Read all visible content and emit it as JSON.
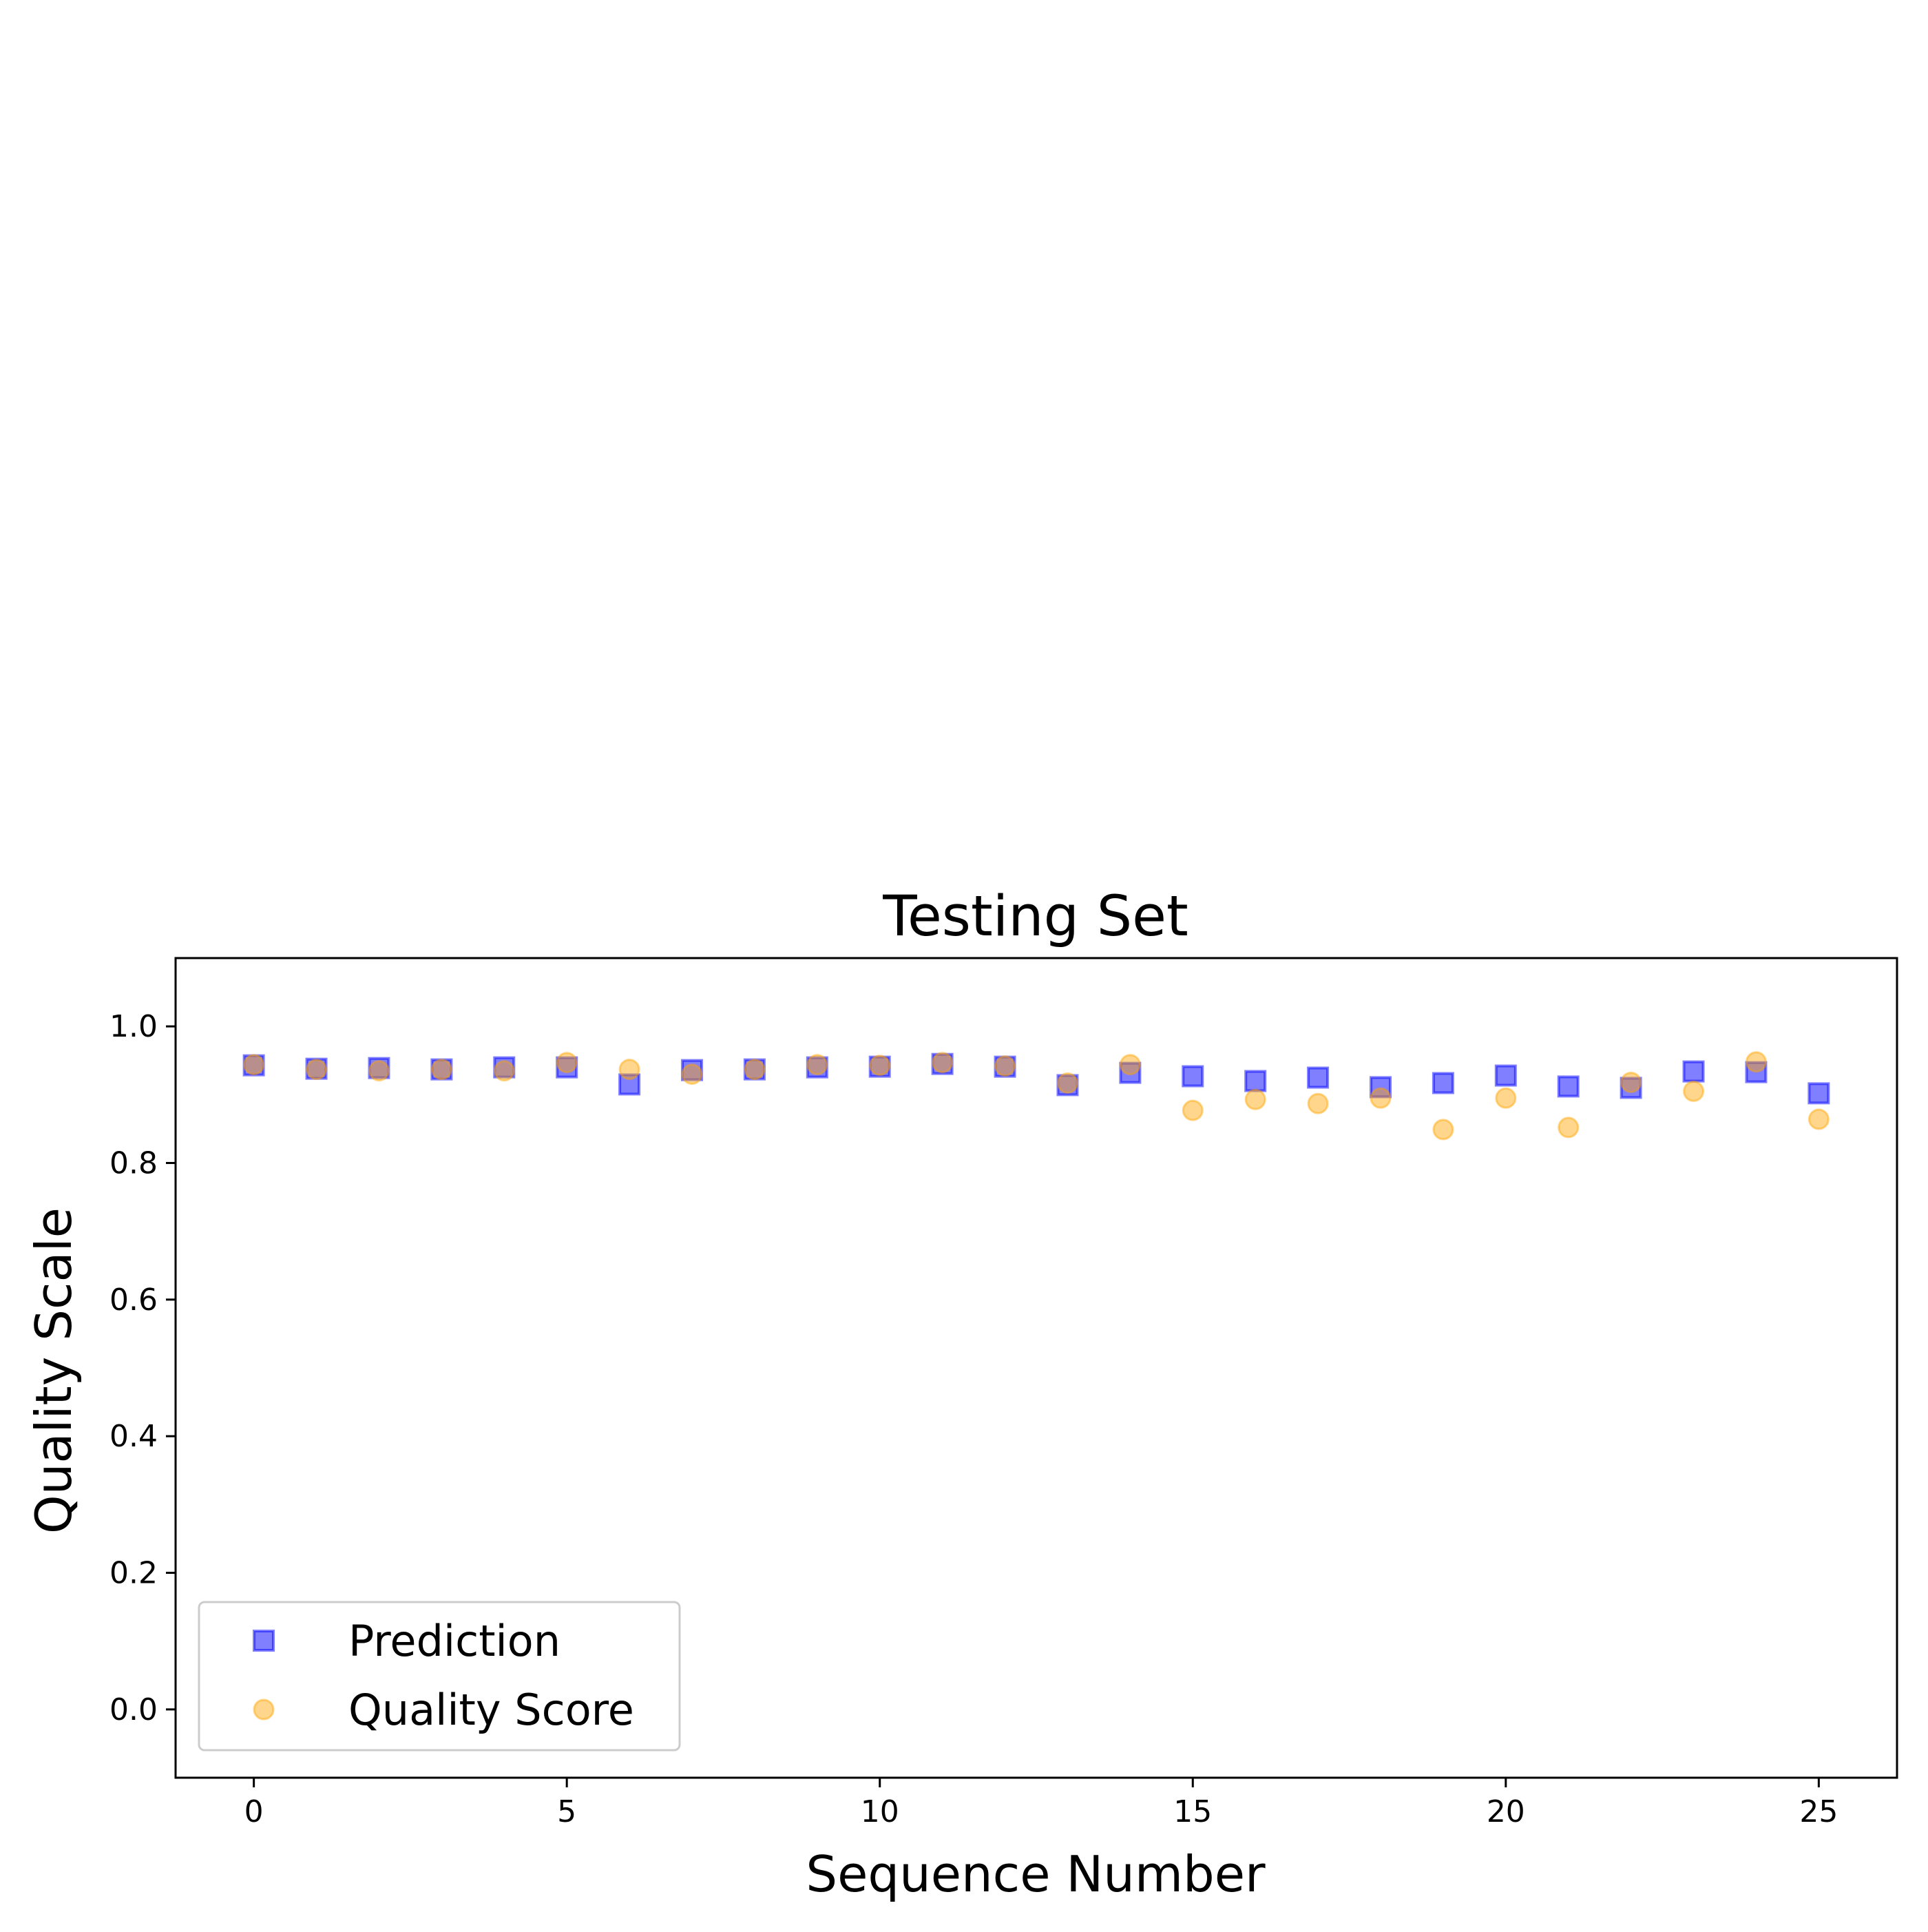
{
  "chart_data": {
    "type": "scatter",
    "title": "Testing Set",
    "xlabel": "Sequence Number",
    "ylabel": "Quality Scale",
    "xlim": [
      -1.25,
      26.25
    ],
    "ylim": [
      -0.1,
      1.1
    ],
    "xticks": [
      0,
      5,
      10,
      15,
      20,
      25
    ],
    "xtick_labels": [
      "0",
      "5",
      "10",
      "15",
      "20",
      "25"
    ],
    "yticks": [
      0.0,
      0.2,
      0.4,
      0.6,
      0.8,
      1.0
    ],
    "ytick_labels": [
      "0.0",
      "0.2",
      "0.4",
      "0.6",
      "0.8",
      "1.0"
    ],
    "grid": false,
    "legend_position": "lower-left",
    "x": [
      0,
      1,
      2,
      3,
      4,
      5,
      6,
      7,
      8,
      9,
      10,
      11,
      12,
      13,
      14,
      15,
      16,
      17,
      18,
      19,
      20,
      21,
      22,
      23,
      24,
      25
    ],
    "series": [
      {
        "name": "Prediction",
        "marker": "square",
        "color": "#0000ff",
        "alpha": 0.5,
        "values": [
          0.943,
          0.938,
          0.939,
          0.937,
          0.94,
          0.94,
          0.915,
          0.936,
          0.937,
          0.94,
          0.941,
          0.945,
          0.941,
          0.914,
          0.932,
          0.927,
          0.92,
          0.925,
          0.911,
          0.917,
          0.928,
          0.912,
          0.91,
          0.934,
          0.933,
          0.902
        ]
      },
      {
        "name": "Quality Score",
        "marker": "circle",
        "color": "#ffa500",
        "alpha": 0.45,
        "values": [
          0.944,
          0.937,
          0.935,
          0.937,
          0.935,
          0.947,
          0.937,
          0.93,
          0.937,
          0.944,
          0.943,
          0.947,
          0.942,
          0.917,
          0.944,
          0.877,
          0.893,
          0.887,
          0.895,
          0.849,
          0.895,
          0.852,
          0.918,
          0.905,
          0.948,
          0.864
        ]
      }
    ]
  }
}
